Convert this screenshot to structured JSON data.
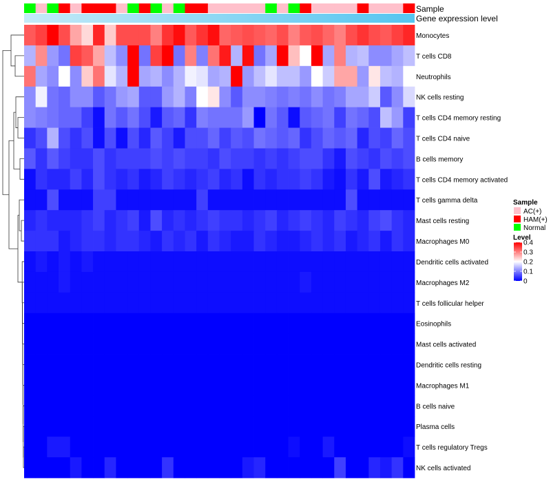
{
  "chart_data": {
    "type": "heatmap",
    "annotation_tracks": [
      {
        "name": "Sample",
        "label": "Sample"
      },
      {
        "name": "Gene expression level",
        "label": "Gene expression level"
      }
    ],
    "sample_groups": [
      "N",
      "A",
      "N",
      "H",
      "A",
      "H",
      "H",
      "H",
      "A",
      "N",
      "H",
      "N",
      "A",
      "N",
      "H",
      "H",
      "A",
      "A",
      "A",
      "A",
      "A",
      "N",
      "A",
      "N",
      "H",
      "A",
      "A",
      "A",
      "A",
      "H",
      "A",
      "A",
      "A",
      "H"
    ],
    "rows": [
      "Monocytes",
      "T cells CD8",
      "Neutrophils",
      "NK cells resting",
      "T cells CD4 memory resting",
      "T cells CD4 naive",
      "B cells memory",
      "T cells CD4 memory activated",
      "T cells gamma delta",
      "Mast cells resting",
      "Macrophages M0",
      "Dendritic cells activated",
      "Macrophages M2",
      "T cells follicular helper",
      "Eosinophils",
      "Mast cells activated",
      "Dendritic cells resting",
      "Macrophages M1",
      "B cells naive",
      "Plasma cells",
      "T cells regulatory  Tregs",
      "NK cells activated"
    ],
    "values": [
      [
        0.33,
        0.35,
        0.41,
        0.34,
        0.27,
        0.23,
        0.37,
        0.24,
        0.34,
        0.34,
        0.34,
        0.3,
        0.36,
        0.39,
        0.33,
        0.36,
        0.39,
        0.32,
        0.33,
        0.34,
        0.33,
        0.32,
        0.34,
        0.3,
        0.33,
        0.34,
        0.32,
        0.3,
        0.34,
        0.36,
        0.34,
        0.33,
        0.35,
        0.37
      ],
      [
        0.14,
        0.29,
        0.12,
        0.09,
        0.35,
        0.33,
        0.27,
        0.15,
        0.11,
        0.4,
        0.09,
        0.35,
        0.41,
        0.09,
        0.3,
        0.1,
        0.31,
        0.38,
        0.14,
        0.39,
        0.09,
        0.13,
        0.4,
        0.25,
        0.2,
        0.4,
        0.13,
        0.3,
        0.14,
        0.15,
        0.11,
        0.11,
        0.13,
        0.15
      ],
      [
        0.31,
        0.13,
        0.11,
        0.2,
        0.11,
        0.24,
        0.31,
        0.18,
        0.14,
        0.44,
        0.13,
        0.14,
        0.11,
        0.14,
        0.19,
        0.18,
        0.13,
        0.14,
        0.41,
        0.12,
        0.15,
        0.18,
        0.15,
        0.15,
        0.12,
        0.2,
        0.16,
        0.27,
        0.27,
        0.12,
        0.22,
        0.15,
        0.14,
        0.2
      ],
      [
        0.11,
        0.19,
        0.09,
        0.08,
        0.11,
        0.11,
        0.07,
        0.09,
        0.12,
        0.13,
        0.07,
        0.07,
        0.12,
        0.14,
        0.1,
        0.2,
        0.22,
        0.11,
        0.07,
        0.11,
        0.11,
        0.1,
        0.09,
        0.1,
        0.09,
        0.11,
        0.09,
        0.1,
        0.13,
        0.13,
        0.16,
        0.07,
        0.11,
        0.17
      ],
      [
        0.11,
        0.1,
        0.09,
        0.08,
        0.08,
        0.05,
        0.01,
        0.09,
        0.07,
        0.09,
        0.06,
        0.02,
        0.07,
        0.08,
        0.04,
        0.1,
        0.09,
        0.09,
        0.09,
        0.12,
        0.0,
        0.09,
        0.07,
        0.01,
        0.07,
        0.08,
        0.09,
        0.05,
        0.09,
        0.08,
        0.06,
        0.15,
        0.12,
        0.05
      ],
      [
        0.04,
        0.06,
        0.14,
        0.06,
        0.04,
        0.06,
        0.01,
        0.06,
        0.01,
        0.06,
        0.03,
        0.07,
        0.05,
        0.02,
        0.06,
        0.06,
        0.08,
        0.05,
        0.07,
        0.06,
        0.09,
        0.08,
        0.07,
        0.08,
        0.04,
        0.06,
        0.08,
        0.07,
        0.08,
        0.03,
        0.06,
        0.05,
        0.08,
        0.06
      ],
      [
        0.07,
        0.04,
        0.07,
        0.05,
        0.04,
        0.04,
        0.06,
        0.04,
        0.05,
        0.05,
        0.05,
        0.06,
        0.05,
        0.06,
        0.05,
        0.05,
        0.04,
        0.06,
        0.05,
        0.05,
        0.04,
        0.05,
        0.04,
        0.05,
        0.06,
        0.06,
        0.04,
        0.02,
        0.06,
        0.05,
        0.04,
        0.06,
        0.05,
        0.06
      ],
      [
        0.01,
        0.04,
        0.03,
        0.03,
        0.05,
        0.03,
        0.06,
        0.04,
        0.03,
        0.04,
        0.02,
        0.03,
        0.05,
        0.04,
        0.03,
        0.04,
        0.05,
        0.03,
        0.04,
        0.01,
        0.04,
        0.03,
        0.04,
        0.04,
        0.05,
        0.04,
        0.02,
        0.01,
        0.04,
        0.02,
        0.06,
        0.02,
        0.03,
        0.04
      ],
      [
        0.01,
        0.01,
        0.06,
        0.01,
        0.01,
        0.01,
        0.05,
        0.05,
        0.01,
        0.01,
        0.01,
        0.01,
        0.01,
        0.01,
        0.01,
        0.05,
        0.01,
        0.01,
        0.01,
        0.01,
        0.01,
        0.01,
        0.01,
        0.01,
        0.01,
        0.01,
        0.01,
        0.01,
        0.06,
        0.01,
        0.01,
        0.01,
        0.01,
        0.01
      ],
      [
        0.03,
        0.04,
        0.03,
        0.03,
        0.03,
        0.04,
        0.05,
        0.03,
        0.04,
        0.05,
        0.02,
        0.06,
        0.03,
        0.04,
        0.03,
        0.04,
        0.05,
        0.04,
        0.04,
        0.03,
        0.04,
        0.05,
        0.03,
        0.04,
        0.05,
        0.04,
        0.03,
        0.05,
        0.04,
        0.03,
        0.05,
        0.06,
        0.04,
        0.03
      ],
      [
        0.04,
        0.04,
        0.04,
        0.02,
        0.03,
        0.04,
        0.04,
        0.03,
        0.04,
        0.04,
        0.03,
        0.02,
        0.04,
        0.03,
        0.04,
        0.02,
        0.04,
        0.03,
        0.02,
        0.02,
        0.04,
        0.03,
        0.02,
        0.02,
        0.03,
        0.04,
        0.03,
        0.04,
        0.02,
        0.03,
        0.04,
        0.02,
        0.04,
        0.03
      ],
      [
        0.01,
        0.02,
        0.01,
        0.02,
        0.01,
        0.02,
        0.01,
        0.01,
        0.01,
        0.01,
        0.01,
        0.01,
        0.01,
        0.01,
        0.01,
        0.01,
        0.01,
        0.01,
        0.01,
        0.01,
        0.01,
        0.01,
        0.01,
        0.01,
        0.01,
        0.01,
        0.01,
        0.01,
        0.01,
        0.01,
        0.01,
        0.01,
        0.01,
        0.01
      ],
      [
        0.01,
        0.01,
        0.01,
        0.02,
        0.01,
        0.01,
        0.01,
        0.01,
        0.01,
        0.01,
        0.01,
        0.01,
        0.01,
        0.01,
        0.01,
        0.01,
        0.01,
        0.01,
        0.01,
        0.01,
        0.01,
        0.01,
        0.01,
        0.01,
        0.02,
        0.01,
        0.01,
        0.01,
        0.01,
        0.01,
        0.01,
        0.01,
        0.01,
        0.01
      ],
      [
        0.01,
        0.01,
        0.01,
        0.01,
        0.01,
        0.01,
        0.01,
        0.01,
        0.01,
        0.01,
        0.01,
        0.01,
        0.01,
        0.01,
        0.01,
        0.01,
        0.01,
        0.01,
        0.01,
        0.01,
        0.01,
        0.01,
        0.01,
        0.01,
        0.01,
        0.01,
        0.01,
        0.01,
        0.01,
        0.01,
        0.01,
        0.01,
        0.01,
        0.01
      ],
      [
        0.0,
        0.0,
        0.0,
        0.0,
        0.0,
        0.0,
        0.0,
        0.0,
        0.0,
        0.0,
        0.0,
        0.0,
        0.0,
        0.0,
        0.0,
        0.0,
        0.0,
        0.0,
        0.0,
        0.0,
        0.0,
        0.0,
        0.0,
        0.0,
        0.0,
        0.0,
        0.0,
        0.0,
        0.0,
        0.0,
        0.0,
        0.0,
        0.0,
        0.0
      ],
      [
        0.0,
        0.0,
        0.0,
        0.0,
        0.0,
        0.0,
        0.0,
        0.0,
        0.0,
        0.0,
        0.0,
        0.0,
        0.0,
        0.0,
        0.0,
        0.0,
        0.0,
        0.0,
        0.0,
        0.0,
        0.0,
        0.0,
        0.0,
        0.0,
        0.0,
        0.0,
        0.0,
        0.0,
        0.0,
        0.0,
        0.0,
        0.0,
        0.0,
        0.0
      ],
      [
        0.0,
        0.0,
        0.0,
        0.0,
        0.0,
        0.0,
        0.0,
        0.0,
        0.0,
        0.0,
        0.0,
        0.0,
        0.0,
        0.0,
        0.0,
        0.0,
        0.0,
        0.0,
        0.0,
        0.0,
        0.0,
        0.0,
        0.0,
        0.0,
        0.0,
        0.0,
        0.0,
        0.0,
        0.0,
        0.0,
        0.0,
        0.0,
        0.0,
        0.0
      ],
      [
        0.0,
        0.0,
        0.0,
        0.0,
        0.0,
        0.0,
        0.0,
        0.0,
        0.0,
        0.0,
        0.0,
        0.0,
        0.0,
        0.0,
        0.0,
        0.0,
        0.0,
        0.0,
        0.0,
        0.0,
        0.0,
        0.0,
        0.0,
        0.0,
        0.0,
        0.0,
        0.0,
        0.0,
        0.0,
        0.0,
        0.0,
        0.0,
        0.0,
        0.0
      ],
      [
        0.0,
        0.0,
        0.0,
        0.0,
        0.0,
        0.0,
        0.0,
        0.0,
        0.0,
        0.0,
        0.0,
        0.0,
        0.0,
        0.0,
        0.0,
        0.0,
        0.0,
        0.0,
        0.0,
        0.0,
        0.0,
        0.0,
        0.0,
        0.0,
        0.0,
        0.0,
        0.0,
        0.0,
        0.0,
        0.0,
        0.0,
        0.0,
        0.0,
        0.0
      ],
      [
        0.0,
        0.0,
        0.0,
        0.0,
        0.0,
        0.0,
        0.0,
        0.0,
        0.0,
        0.0,
        0.0,
        0.0,
        0.0,
        0.0,
        0.0,
        0.0,
        0.0,
        0.0,
        0.0,
        0.0,
        0.0,
        0.0,
        0.0,
        0.0,
        0.0,
        0.0,
        0.0,
        0.0,
        0.0,
        0.0,
        0.0,
        0.0,
        0.0,
        0.0
      ],
      [
        0.0,
        0.0,
        0.02,
        0.02,
        0.0,
        0.0,
        0.0,
        0.0,
        0.0,
        0.0,
        0.0,
        0.0,
        0.0,
        0.0,
        0.0,
        0.0,
        0.0,
        0.0,
        0.0,
        0.0,
        0.0,
        0.0,
        0.0,
        0.01,
        0.0,
        0.0,
        0.02,
        0.0,
        0.0,
        0.0,
        0.0,
        0.0,
        0.0,
        0.01
      ],
      [
        0.0,
        0.0,
        0.0,
        0.0,
        0.02,
        0.0,
        0.0,
        0.03,
        0.0,
        0.0,
        0.0,
        0.0,
        0.04,
        0.0,
        0.0,
        0.0,
        0.0,
        0.0,
        0.0,
        0.02,
        0.03,
        0.0,
        0.0,
        0.0,
        0.0,
        0.0,
        0.0,
        0.05,
        0.0,
        0.0,
        0.03,
        0.02,
        0.04,
        0.0
      ]
    ],
    "legend": {
      "sample_title": "Sample",
      "sample_entries": [
        {
          "code": "A",
          "label": "AC(+)",
          "color": "#ffc0cb"
        },
        {
          "code": "H",
          "label": "HAM(+)",
          "color": "#ff0000"
        },
        {
          "code": "N",
          "label": "Normal",
          "color": "#00ff00"
        }
      ],
      "level_title": "Level",
      "level_ticks": [
        "0.4",
        "0.3",
        "0.2",
        "0.1",
        "0"
      ],
      "level_tick_values": [
        0.4,
        0.3,
        0.2,
        0.1,
        0
      ],
      "placement": "right"
    },
    "color_scale": {
      "low": "#0000ff",
      "mid": "#ffffff",
      "high": "#ff0000",
      "min": 0,
      "mid_value": 0.2,
      "max": 0.4
    },
    "expression_bar_colors": [
      "#c4eaf8",
      "#55c5f0"
    ],
    "dendrogram_color": "#333333"
  }
}
